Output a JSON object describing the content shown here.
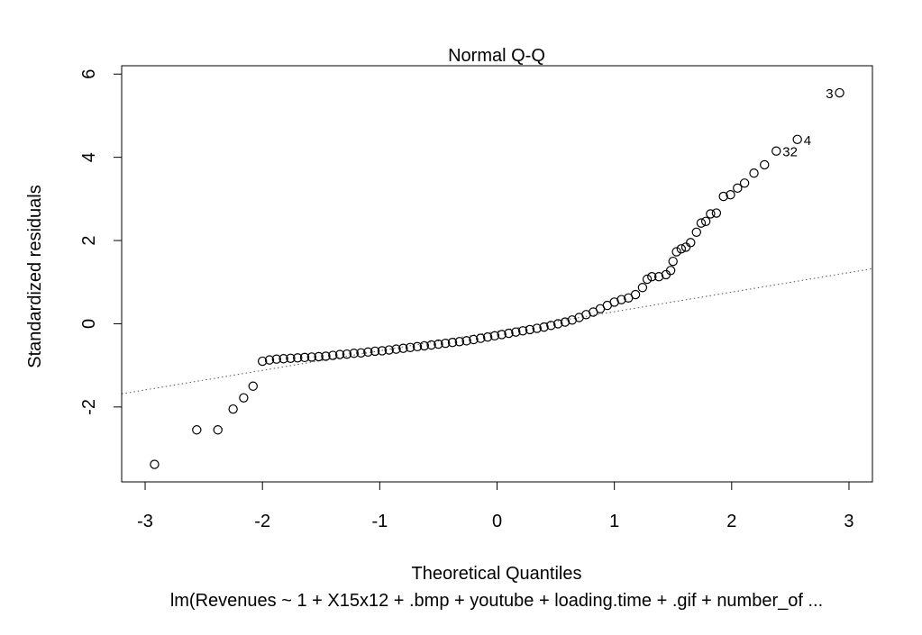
{
  "chart_data": {
    "type": "scatter",
    "title": "Normal Q-Q",
    "xlabel": "Theoretical Quantiles",
    "ylabel": "Standardized residuals",
    "subtitle": "lm(Revenues ~ 1 + X15x12 + .bmp + youtube + loading.time + .gif + number_of ...",
    "xlim": [
      -3.2,
      3.2
    ],
    "ylim": [
      -3.8,
      6.2
    ],
    "x_ticks": [
      -3,
      -2,
      -1,
      0,
      1,
      2,
      3
    ],
    "y_ticks": [
      -2,
      0,
      2,
      4,
      6
    ],
    "reference_line": {
      "intercept": -0.18,
      "slope": 0.47,
      "style": "dotted"
    },
    "point_labels": [
      {
        "text": "3",
        "x": 2.92,
        "y": 5.55,
        "side": "left"
      },
      {
        "text": "4",
        "x": 2.56,
        "y": 4.43,
        "side": "right"
      },
      {
        "text": "32",
        "x": 2.38,
        "y": 4.15,
        "side": "right"
      }
    ],
    "points": [
      [
        -2.92,
        -3.38
      ],
      [
        -2.56,
        -2.55
      ],
      [
        -2.38,
        -2.55
      ],
      [
        -2.25,
        -2.05
      ],
      [
        -2.16,
        -1.78
      ],
      [
        -2.08,
        -1.5
      ],
      [
        -2.0,
        -0.9
      ],
      [
        -1.94,
        -0.87
      ],
      [
        -1.88,
        -0.85
      ],
      [
        -1.82,
        -0.84
      ],
      [
        -1.76,
        -0.83
      ],
      [
        -1.7,
        -0.82
      ],
      [
        -1.64,
        -0.81
      ],
      [
        -1.58,
        -0.8
      ],
      [
        -1.52,
        -0.79
      ],
      [
        -1.46,
        -0.78
      ],
      [
        -1.4,
        -0.76
      ],
      [
        -1.34,
        -0.74
      ],
      [
        -1.28,
        -0.73
      ],
      [
        -1.22,
        -0.71
      ],
      [
        -1.16,
        -0.7
      ],
      [
        -1.1,
        -0.68
      ],
      [
        -1.04,
        -0.66
      ],
      [
        -0.98,
        -0.65
      ],
      [
        -0.92,
        -0.63
      ],
      [
        -0.86,
        -0.61
      ],
      [
        -0.8,
        -0.59
      ],
      [
        -0.74,
        -0.57
      ],
      [
        -0.68,
        -0.55
      ],
      [
        -0.62,
        -0.53
      ],
      [
        -0.56,
        -0.51
      ],
      [
        -0.5,
        -0.49
      ],
      [
        -0.44,
        -0.47
      ],
      [
        -0.38,
        -0.45
      ],
      [
        -0.32,
        -0.43
      ],
      [
        -0.26,
        -0.41
      ],
      [
        -0.2,
        -0.38
      ],
      [
        -0.14,
        -0.35
      ],
      [
        -0.08,
        -0.32
      ],
      [
        -0.02,
        -0.29
      ],
      [
        0.04,
        -0.26
      ],
      [
        0.1,
        -0.23
      ],
      [
        0.16,
        -0.2
      ],
      [
        0.22,
        -0.17
      ],
      [
        0.28,
        -0.14
      ],
      [
        0.34,
        -0.11
      ],
      [
        0.4,
        -0.08
      ],
      [
        0.46,
        -0.04
      ],
      [
        0.52,
        0.0
      ],
      [
        0.58,
        0.04
      ],
      [
        0.64,
        0.09
      ],
      [
        0.7,
        0.15
      ],
      [
        0.76,
        0.22
      ],
      [
        0.82,
        0.28
      ],
      [
        0.88,
        0.36
      ],
      [
        0.94,
        0.44
      ],
      [
        1.0,
        0.52
      ],
      [
        1.06,
        0.58
      ],
      [
        1.12,
        0.62
      ],
      [
        1.18,
        0.7
      ],
      [
        1.24,
        0.87
      ],
      [
        1.28,
        1.07
      ],
      [
        1.32,
        1.13
      ],
      [
        1.38,
        1.13
      ],
      [
        1.44,
        1.18
      ],
      [
        1.48,
        1.28
      ],
      [
        1.5,
        1.5
      ],
      [
        1.53,
        1.73
      ],
      [
        1.57,
        1.8
      ],
      [
        1.61,
        1.84
      ],
      [
        1.65,
        1.95
      ],
      [
        1.7,
        2.2
      ],
      [
        1.74,
        2.42
      ],
      [
        1.78,
        2.46
      ],
      [
        1.82,
        2.64
      ],
      [
        1.87,
        2.66
      ],
      [
        1.93,
        3.06
      ],
      [
        1.99,
        3.1
      ],
      [
        2.05,
        3.26
      ],
      [
        2.11,
        3.38
      ],
      [
        2.19,
        3.62
      ],
      [
        2.28,
        3.82
      ],
      [
        2.38,
        4.15
      ],
      [
        2.56,
        4.43
      ],
      [
        2.92,
        5.55
      ]
    ]
  }
}
